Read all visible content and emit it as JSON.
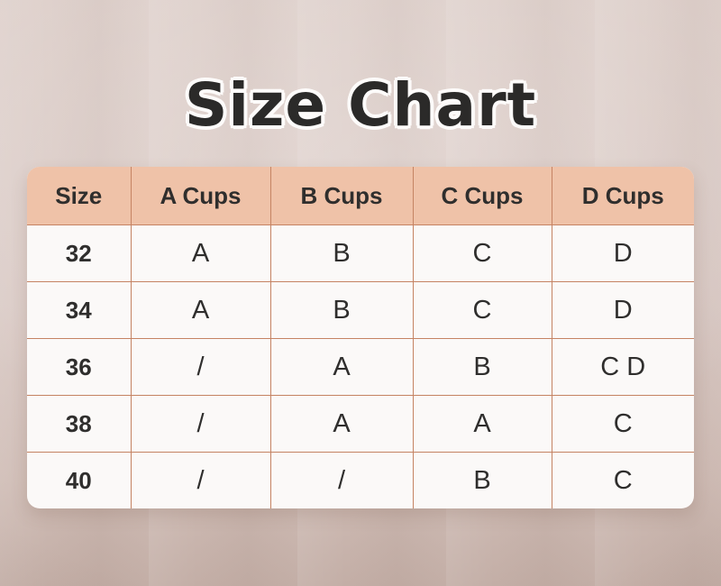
{
  "title": "Size Chart",
  "chart_data": {
    "type": "table",
    "title": "Size Chart",
    "columns": [
      "Size",
      "A Cups",
      "B Cups",
      "C Cups",
      "D Cups"
    ],
    "rows": [
      [
        "32",
        "A",
        "B",
        "C",
        "D"
      ],
      [
        "34",
        "A",
        "B",
        "C",
        "D"
      ],
      [
        "36",
        "/",
        "A",
        "B",
        "C D"
      ],
      [
        "38",
        "/",
        "A",
        "A",
        "C"
      ],
      [
        "40",
        "/",
        "/",
        "B",
        "C"
      ]
    ]
  },
  "colors": {
    "header_bg": "#efc2a8",
    "body_bg": "#fbf9f8",
    "grid_line": "#c58363",
    "text": "#2f2e2d",
    "title_text": "#2b2a29",
    "title_outline": "#fdfbfa",
    "background_top": "#ded0cb",
    "background_bottom": "#c3aea6"
  }
}
